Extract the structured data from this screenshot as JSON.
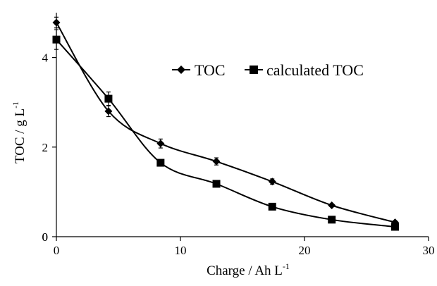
{
  "chart_data": {
    "type": "line",
    "title": "",
    "xlabel": "Charge / Ah L",
    "xlabel_sup": "-1",
    "ylabel": "TOC / g L",
    "ylabel_sup": "-1",
    "xlim": [
      0,
      30
    ],
    "ylim": [
      0,
      5
    ],
    "xticks": [
      0,
      10,
      20,
      30
    ],
    "yticks": [
      0,
      2,
      4
    ],
    "grid": false,
    "legend_position": "top-right",
    "series": [
      {
        "name": "TOC",
        "marker": "diamond",
        "color": "#000000",
        "x": [
          0,
          4.2,
          8.4,
          12.9,
          17.4,
          22.2,
          27.3
        ],
        "y": [
          4.78,
          2.8,
          2.08,
          1.68,
          1.23,
          0.7,
          0.32
        ],
        "err": [
          0.12,
          0.12,
          0.1,
          0.08,
          0.06,
          0.03,
          0.03
        ]
      },
      {
        "name": "calculated TOC",
        "marker": "square",
        "color": "#000000",
        "x": [
          0,
          4.2,
          8.4,
          12.9,
          17.4,
          22.2,
          27.3
        ],
        "y": [
          4.4,
          3.08,
          1.65,
          1.18,
          0.67,
          0.38,
          0.22
        ],
        "err": [
          0.22,
          0.15,
          0.05,
          0.03,
          0.03,
          0.03,
          0.03
        ]
      }
    ]
  }
}
